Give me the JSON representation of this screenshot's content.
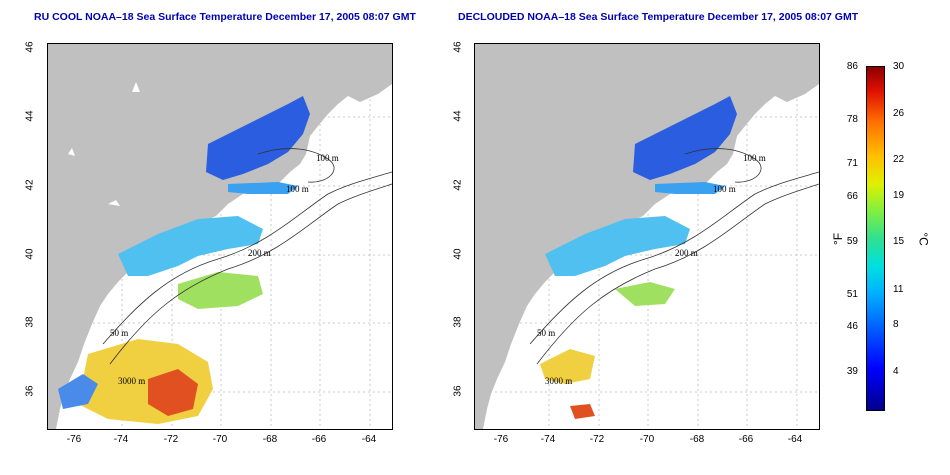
{
  "left_panel": {
    "title": "RU COOL NOAA–18 Sea Surface Temperature December 17, 2005 08:07 GMT"
  },
  "right_panel": {
    "title": "DECLOUDED NOAA–18 Sea Surface Temperature December 17, 2005 08:07 GMT"
  },
  "axes": {
    "x_ticks": [
      "-76",
      "-74",
      "-72",
      "-70",
      "-68",
      "-66",
      "-64"
    ],
    "y_ticks": [
      "36",
      "38",
      "40",
      "42",
      "44",
      "46"
    ]
  },
  "contour_labels": {
    "c100a": "100 m",
    "c100b": "100 m",
    "c50a": "50 m",
    "c200": "200 m",
    "c50b": "50 m",
    "c3000": "3000 m"
  },
  "colorbar": {
    "unit_f": "°F",
    "unit_c": "°C",
    "f_labels": [
      "86",
      "78",
      "71",
      "66",
      "59",
      "51",
      "46",
      "39"
    ],
    "c_labels": [
      "30",
      "26",
      "22",
      "19",
      "15",
      "11",
      "8",
      "4"
    ]
  },
  "colors": {
    "land": "#c0c0c0",
    "title": "#0000b4"
  }
}
